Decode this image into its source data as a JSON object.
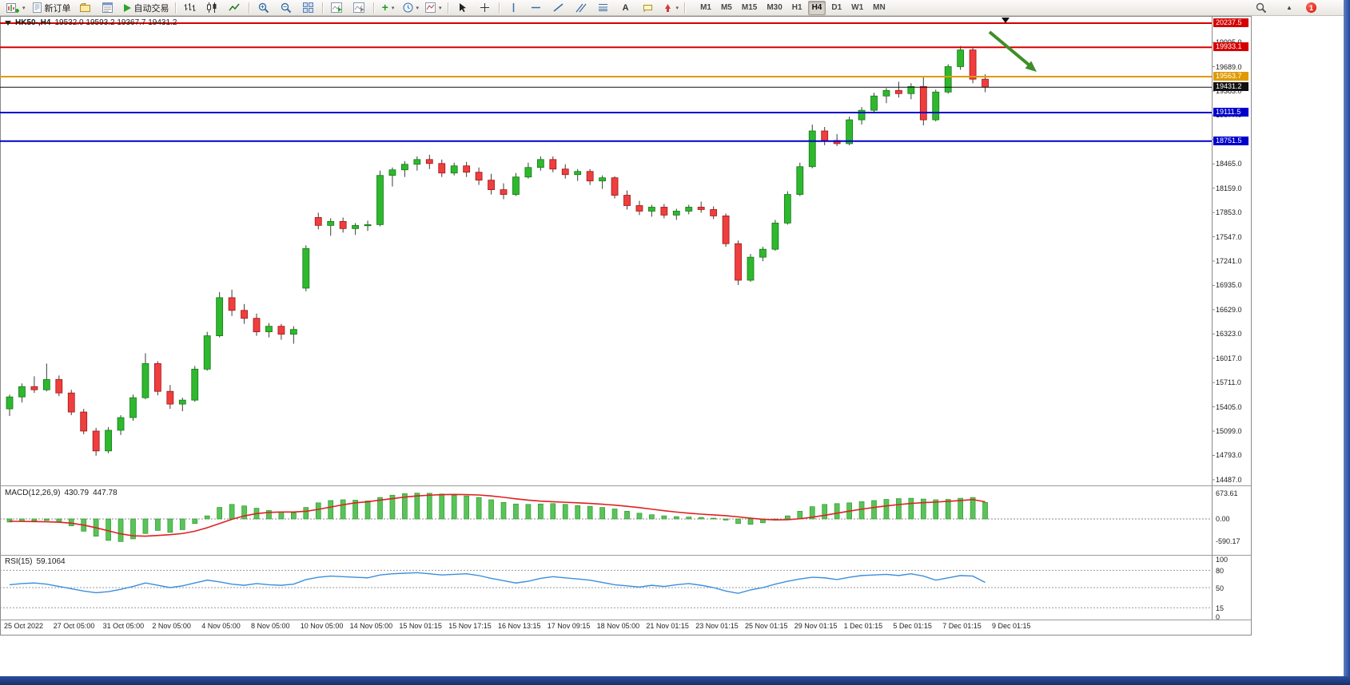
{
  "toolbar": {
    "items": [
      {
        "type": "icon",
        "name": "new-chart",
        "dropdown": true
      },
      {
        "type": "button",
        "name": "new-order",
        "label": "新订单"
      },
      {
        "type": "icon",
        "name": "profiles"
      },
      {
        "type": "icon",
        "name": "market-watch"
      },
      {
        "type": "button",
        "name": "auto-trading",
        "label": "自动交易"
      },
      {
        "type": "sep"
      },
      {
        "type": "icon",
        "name": "bar-chart"
      },
      {
        "type": "icon",
        "name": "candlestick-chart"
      },
      {
        "type": "icon",
        "name": "line-chart"
      },
      {
        "type": "sep"
      },
      {
        "type": "icon",
        "name": "zoom-in"
      },
      {
        "type": "icon",
        "name": "zoom-out"
      },
      {
        "type": "icon",
        "name": "tile-windows"
      },
      {
        "type": "sep"
      },
      {
        "type": "icon",
        "name": "auto-scroll"
      },
      {
        "type": "icon",
        "name": "chart-shift"
      },
      {
        "type": "sep"
      },
      {
        "type": "icon",
        "name": "indicators",
        "dropdown": true
      },
      {
        "type": "icon",
        "name": "timeframes-menu",
        "dropdown": true
      },
      {
        "type": "icon",
        "name": "templates",
        "dropdown": true
      },
      {
        "type": "sep"
      },
      {
        "type": "icon",
        "name": "cursor"
      },
      {
        "type": "icon",
        "name": "crosshair"
      },
      {
        "type": "sep"
      },
      {
        "type": "icon",
        "name": "vertical-line"
      },
      {
        "type": "icon",
        "name": "horizontal-line"
      },
      {
        "type": "icon",
        "name": "trendline"
      },
      {
        "type": "icon",
        "name": "equidistant-channel"
      },
      {
        "type": "icon",
        "name": "fibonacci"
      },
      {
        "type": "icon",
        "name": "text"
      },
      {
        "type": "icon",
        "name": "text-label"
      },
      {
        "type": "icon",
        "name": "arrows",
        "dropdown": true
      },
      {
        "type": "sep"
      }
    ],
    "timeframes": [
      "M1",
      "M5",
      "M15",
      "M30",
      "H1",
      "H4",
      "D1",
      "W1",
      "MN"
    ],
    "active_timeframe": "H4",
    "notification_count": "1"
  },
  "chart": {
    "title": "HK50-,H4",
    "ohlc_text": "19532.0 19593.2 19367.7 19431.2"
  },
  "macd": {
    "header": "MACD(12,26,9)",
    "value": "430.79",
    "signal_value": "447.78"
  },
  "rsi": {
    "header": "RSI(15)",
    "value": "59.1064"
  },
  "annotation": {
    "arrow_color": "#3f8f28"
  },
  "chart_data": [
    {
      "type": "candlestick",
      "symbol": "HK50-",
      "timeframe": "H4",
      "up_color": "#2eb82e",
      "down_color": "#ef3e3e",
      "price_range": {
        "top_visible": 20237.5,
        "bottom_visible": 14496
      },
      "y_axis": [
        19995,
        19689,
        19383,
        19077,
        18771,
        18465,
        18159,
        17853,
        17547,
        17241,
        16935,
        16629,
        16323,
        16017,
        15711,
        15405,
        15099,
        14793,
        14487
      ],
      "levels": [
        {
          "price": 20237.5,
          "color": "#d50000",
          "width": 2
        },
        {
          "price": 19933.1,
          "color": "#d50000",
          "width": 2
        },
        {
          "price": 19563.7,
          "color": "#e09a00",
          "width": 2
        },
        {
          "price": 19431.2,
          "color": "#111111",
          "width": 1
        },
        {
          "price": 19111.5,
          "color": "#0000cc",
          "width": 2
        },
        {
          "price": 18751.5,
          "color": "#0000cc",
          "width": 2
        }
      ],
      "x_axis_labels": [
        "25 Oct 2022",
        "27 Oct 05:00",
        "31 Oct 05:00",
        "2 Nov 05:00",
        "4 Nov 05:00",
        "8 Nov 05:00",
        "10 Nov 05:00",
        "14 Nov 05:00",
        "15 Nov 01:15",
        "15 Nov 17:15",
        "16 Nov 13:15",
        "17 Nov 09:15",
        "18 Nov 05:00",
        "21 Nov 01:15",
        "23 Nov 01:15",
        "25 Nov 01:15",
        "29 Nov 01:15",
        "1 Dec 01:15",
        "5 Dec 01:15",
        "7 Dec 01:15",
        "9 Dec 01:15"
      ],
      "candles": [
        [
          15380,
          15560,
          15290,
          15530
        ],
        [
          15530,
          15700,
          15460,
          15660
        ],
        [
          15660,
          15790,
          15580,
          15620
        ],
        [
          15620,
          15950,
          15600,
          15750
        ],
        [
          15750,
          15800,
          15540,
          15580
        ],
        [
          15580,
          15620,
          15300,
          15340
        ],
        [
          15340,
          15380,
          15060,
          15100
        ],
        [
          15100,
          15140,
          14790,
          14850
        ],
        [
          14850,
          15150,
          14820,
          15110
        ],
        [
          15110,
          15300,
          15050,
          15270
        ],
        [
          15270,
          15560,
          15230,
          15520
        ],
        [
          15520,
          16080,
          15500,
          15950
        ],
        [
          15950,
          15980,
          15550,
          15600
        ],
        [
          15600,
          15680,
          15380,
          15440
        ],
        [
          15440,
          15520,
          15350,
          15490
        ],
        [
          15490,
          15920,
          15470,
          15880
        ],
        [
          15880,
          16350,
          15860,
          16300
        ],
        [
          16300,
          16850,
          16280,
          16780
        ],
        [
          16780,
          16880,
          16550,
          16620
        ],
        [
          16620,
          16700,
          16450,
          16520
        ],
        [
          16520,
          16580,
          16300,
          16350
        ],
        [
          16350,
          16460,
          16280,
          16420
        ],
        [
          16420,
          16450,
          16250,
          16320
        ],
        [
          16320,
          16420,
          16200,
          16380
        ],
        [
          16900,
          17440,
          16860,
          17400
        ],
        [
          17790,
          17850,
          17640,
          17690
        ],
        [
          17690,
          17780,
          17560,
          17740
        ],
        [
          17740,
          17790,
          17600,
          17650
        ],
        [
          17650,
          17720,
          17570,
          17690
        ],
        [
          17690,
          17750,
          17620,
          17700
        ],
        [
          17700,
          18380,
          17680,
          18320
        ],
        [
          18320,
          18420,
          18180,
          18390
        ],
        [
          18390,
          18500,
          18300,
          18460
        ],
        [
          18460,
          18560,
          18380,
          18520
        ],
        [
          18520,
          18580,
          18400,
          18470
        ],
        [
          18470,
          18520,
          18300,
          18350
        ],
        [
          18350,
          18480,
          18320,
          18440
        ],
        [
          18440,
          18490,
          18300,
          18360
        ],
        [
          18360,
          18420,
          18200,
          18260
        ],
        [
          18260,
          18340,
          18080,
          18140
        ],
        [
          18140,
          18220,
          18020,
          18080
        ],
        [
          18080,
          18350,
          18060,
          18300
        ],
        [
          18300,
          18480,
          18280,
          18420
        ],
        [
          18420,
          18560,
          18380,
          18520
        ],
        [
          18520,
          18560,
          18360,
          18400
        ],
        [
          18400,
          18460,
          18280,
          18330
        ],
        [
          18330,
          18400,
          18250,
          18370
        ],
        [
          18370,
          18400,
          18200,
          18250
        ],
        [
          18250,
          18320,
          18150,
          18290
        ],
        [
          18290,
          18310,
          18030,
          18070
        ],
        [
          18070,
          18130,
          17890,
          17940
        ],
        [
          17940,
          18000,
          17820,
          17870
        ],
        [
          17870,
          17950,
          17800,
          17920
        ],
        [
          17920,
          17960,
          17780,
          17820
        ],
        [
          17820,
          17900,
          17760,
          17870
        ],
        [
          17870,
          17950,
          17830,
          17920
        ],
        [
          17920,
          17990,
          17850,
          17890
        ],
        [
          17890,
          17930,
          17770,
          17810
        ],
        [
          17810,
          17840,
          17420,
          17460
        ],
        [
          17460,
          17500,
          16940,
          17000
        ],
        [
          17000,
          17330,
          16980,
          17290
        ],
        [
          17290,
          17420,
          17240,
          17390
        ],
        [
          17390,
          17760,
          17370,
          17720
        ],
        [
          17720,
          18120,
          17700,
          18080
        ],
        [
          18080,
          18480,
          18060,
          18430
        ],
        [
          18430,
          18960,
          18410,
          18880
        ],
        [
          18880,
          18930,
          18700,
          18760
        ],
        [
          18760,
          18840,
          18690,
          18720
        ],
        [
          18720,
          19060,
          18700,
          19020
        ],
        [
          19020,
          19180,
          18960,
          19140
        ],
        [
          19140,
          19360,
          19100,
          19320
        ],
        [
          19320,
          19420,
          19230,
          19390
        ],
        [
          19390,
          19500,
          19300,
          19350
        ],
        [
          19350,
          19480,
          19280,
          19440
        ],
        [
          19440,
          19560,
          18950,
          19020
        ],
        [
          19020,
          19400,
          19000,
          19370
        ],
        [
          19370,
          19720,
          19350,
          19690
        ],
        [
          19690,
          19950,
          19650,
          19900
        ],
        [
          19900,
          19940,
          19480,
          19532
        ],
        [
          19532,
          19593.2,
          19367.7,
          19431.2
        ]
      ]
    },
    {
      "type": "macd",
      "label": "MACD(12,26,9)",
      "y_axis": [
        673.61,
        0,
        -590.17
      ],
      "hist": [
        -80,
        -60,
        -50,
        -40,
        -80,
        -180,
        -320,
        -450,
        -560,
        -590,
        -520,
        -380,
        -300,
        -350,
        -280,
        -120,
        80,
        300,
        380,
        340,
        280,
        220,
        180,
        160,
        300,
        420,
        480,
        500,
        490,
        470,
        560,
        620,
        660,
        673,
        670,
        650,
        620,
        600,
        560,
        500,
        430,
        390,
        380,
        390,
        400,
        380,
        350,
        330,
        300,
        260,
        200,
        150,
        110,
        80,
        60,
        50,
        40,
        20,
        -30,
        -120,
        -140,
        -100,
        -20,
        80,
        200,
        320,
        380,
        400,
        420,
        450,
        480,
        510,
        530,
        540,
        520,
        500,
        510,
        540,
        560,
        431
      ],
      "signal": [
        -60,
        -65,
        -70,
        -75,
        -85,
        -110,
        -160,
        -230,
        -310,
        -390,
        -440,
        -450,
        -430,
        -410,
        -380,
        -320,
        -230,
        -120,
        -10,
        80,
        140,
        170,
        180,
        180,
        200,
        250,
        310,
        370,
        420,
        450,
        490,
        530,
        570,
        600,
        620,
        635,
        640,
        635,
        625,
        600,
        565,
        525,
        490,
        465,
        450,
        435,
        420,
        405,
        385,
        360,
        330,
        295,
        255,
        215,
        180,
        150,
        125,
        105,
        85,
        55,
        20,
        -10,
        -25,
        -20,
        5,
        45,
        95,
        150,
        205,
        255,
        300,
        340,
        375,
        405,
        425,
        440,
        460,
        480,
        505,
        448
      ]
    },
    {
      "type": "rsi",
      "label": "RSI(15)",
      "y_axis": [
        100,
        80,
        50,
        15,
        0
      ],
      "levels": [
        80,
        50,
        15
      ],
      "values": [
        55,
        57,
        58,
        56,
        52,
        48,
        44,
        41,
        43,
        47,
        52,
        58,
        54,
        50,
        53,
        58,
        63,
        60,
        56,
        54,
        57,
        55,
        54,
        56,
        64,
        68,
        70,
        69,
        68,
        67,
        72,
        74,
        75,
        76,
        74,
        72,
        73,
        74,
        71,
        66,
        62,
        58,
        61,
        66,
        69,
        67,
        65,
        63,
        59,
        55,
        53,
        51,
        54,
        52,
        55,
        57,
        54,
        50,
        44,
        40,
        46,
        50,
        56,
        61,
        65,
        68,
        67,
        64,
        68,
        71,
        72,
        73,
        71,
        74,
        70,
        63,
        67,
        71,
        70,
        59
      ]
    }
  ]
}
